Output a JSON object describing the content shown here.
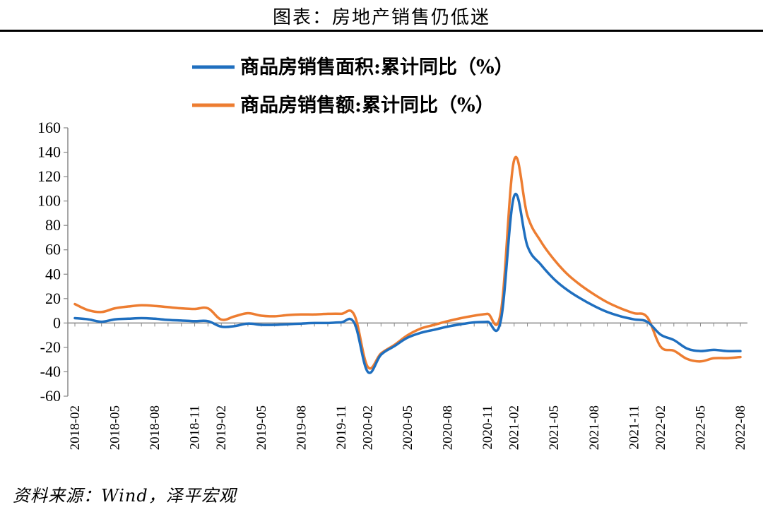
{
  "header": {
    "title": "图表：房地产销售仍低迷"
  },
  "footer": {
    "source": "资料来源：Wind，泽平宏观"
  },
  "chart_data": {
    "type": "line",
    "title": "",
    "xlabel": "",
    "ylabel": "",
    "ylim": [
      -60,
      160
    ],
    "yticks": [
      160,
      140,
      120,
      100,
      80,
      60,
      40,
      20,
      0,
      -20,
      -40,
      -60
    ],
    "x": [
      "2018-02",
      "2018-03",
      "2018-04",
      "2018-05",
      "2018-06",
      "2018-07",
      "2018-08",
      "2018-09",
      "2018-10",
      "2018-11",
      "2018-12",
      "2019-02",
      "2019-03",
      "2019-04",
      "2019-05",
      "2019-06",
      "2019-07",
      "2019-08",
      "2019-09",
      "2019-10",
      "2019-11",
      "2019-12",
      "2020-02",
      "2020-03",
      "2020-04",
      "2020-05",
      "2020-06",
      "2020-07",
      "2020-08",
      "2020-09",
      "2020-10",
      "2020-11",
      "2020-12",
      "2021-02",
      "2021-03",
      "2021-04",
      "2021-05",
      "2021-06",
      "2021-07",
      "2021-08",
      "2021-09",
      "2021-10",
      "2021-11",
      "2021-12",
      "2022-02",
      "2022-03",
      "2022-04",
      "2022-05",
      "2022-06",
      "2022-07",
      "2022-08"
    ],
    "xtick_labels": [
      "2018-02",
      "2018-05",
      "2018-08",
      "2018-11",
      "2019-02",
      "2019-05",
      "2019-08",
      "2019-11",
      "2020-02",
      "2020-05",
      "2020-08",
      "2020-11",
      "2021-02",
      "2021-05",
      "2021-08",
      "2021-11",
      "2022-02",
      "2022-05",
      "2022-08"
    ],
    "grid": false,
    "legend_position": "top-center",
    "series": [
      {
        "name": "商品房销售面积:累计同比（%）",
        "color": "#1f6fbf",
        "values": [
          4.0,
          3.0,
          1.0,
          3.0,
          3.5,
          4.0,
          3.5,
          2.5,
          2.0,
          1.5,
          1.5,
          -3.0,
          -2.5,
          -0.5,
          -1.5,
          -1.5,
          -1.0,
          -0.5,
          0.0,
          0.0,
          0.5,
          0.0,
          -40.0,
          -26.0,
          -19.0,
          -12.0,
          -8.0,
          -5.5,
          -3.0,
          -1.0,
          0.5,
          1.0,
          2.0,
          104.0,
          63.0,
          48.0,
          36.0,
          27.0,
          20.0,
          14.0,
          9.0,
          5.5,
          3.0,
          1.0,
          -9.5,
          -14.0,
          -21.0,
          -23.0,
          -22.0,
          -23.0,
          -23.0
        ]
      },
      {
        "name": "商品房销售额:累计同比（%）",
        "color": "#ed7d31",
        "values": [
          15.5,
          10.5,
          9.0,
          12.0,
          13.5,
          14.5,
          14.0,
          13.0,
          12.0,
          11.5,
          12.0,
          2.8,
          5.5,
          8.0,
          6.0,
          5.5,
          6.5,
          7.0,
          7.0,
          7.5,
          7.5,
          6.5,
          -35.9,
          -25.0,
          -18.0,
          -10.0,
          -4.5,
          -1.5,
          1.5,
          4.0,
          6.0,
          7.5,
          8.7,
          133.4,
          88.0,
          67.0,
          52.0,
          40.0,
          31.0,
          23.5,
          17.0,
          12.0,
          8.0,
          4.8,
          -19.3,
          -22.7,
          -29.5,
          -31.5,
          -28.9,
          -28.8,
          -27.9
        ]
      }
    ]
  }
}
